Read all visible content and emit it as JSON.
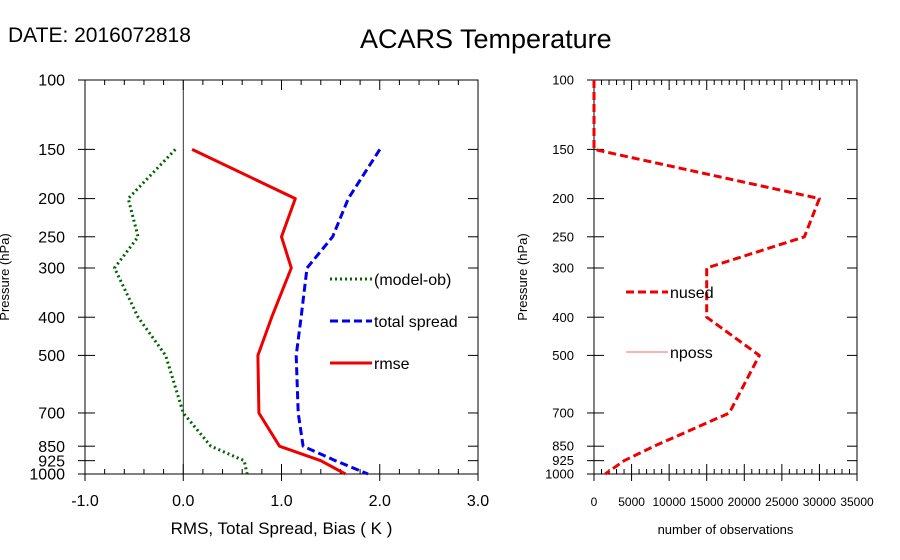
{
  "date_label": "DATE: 2016072818",
  "title": "ACARS Temperature",
  "chart_data": [
    {
      "type": "line",
      "name": "left-panel",
      "ylabel": "Pressure (hPa)",
      "xlabel": "RMS, Total Spread, Bias ( K )",
      "xlim": [
        -1.0,
        3.0
      ],
      "ylim": [
        1000,
        100
      ],
      "y_scale": "log",
      "xticks": [
        "-1.0",
        "0.0",
        "1.0",
        "2.0",
        "3.0"
      ],
      "yticks": [
        100,
        150,
        200,
        250,
        300,
        400,
        500,
        700,
        850,
        925,
        1000
      ],
      "zero_line": 0,
      "legend_position": "right-middle",
      "series": [
        {
          "name": "(model-ob)",
          "color": "#006400",
          "style": "dotted",
          "points": [
            [
              -0.08,
              150
            ],
            [
              -0.56,
              200
            ],
            [
              -0.46,
              250
            ],
            [
              -0.7,
              300
            ],
            [
              -0.46,
              400
            ],
            [
              -0.18,
              500
            ],
            [
              0.0,
              700
            ],
            [
              0.28,
              850
            ],
            [
              0.62,
              925
            ],
            [
              0.65,
              1000
            ]
          ]
        },
        {
          "name": "total spread",
          "color": "#0000ee",
          "style": "dashed",
          "points": [
            [
              2.0,
              150
            ],
            [
              1.68,
              200
            ],
            [
              1.52,
              250
            ],
            [
              1.26,
              300
            ],
            [
              1.2,
              400
            ],
            [
              1.15,
              500
            ],
            [
              1.17,
              700
            ],
            [
              1.22,
              850
            ],
            [
              1.55,
              925
            ],
            [
              1.88,
              1000
            ]
          ]
        },
        {
          "name": "rmse",
          "color": "#ee0000",
          "style": "solid",
          "points": [
            [
              0.09,
              150
            ],
            [
              1.14,
              200
            ],
            [
              1.0,
              250
            ],
            [
              1.1,
              300
            ],
            [
              0.9,
              400
            ],
            [
              0.76,
              500
            ],
            [
              0.77,
              700
            ],
            [
              0.98,
              850
            ],
            [
              1.4,
              925
            ],
            [
              1.65,
              1000
            ]
          ]
        }
      ]
    },
    {
      "type": "line",
      "name": "right-panel",
      "ylabel": "Pressure (hPa)",
      "xlabel": "number of observations",
      "xlim": [
        0,
        35000
      ],
      "ylim": [
        1000,
        100
      ],
      "y_scale": "log",
      "xticks": [
        "0",
        "5000",
        "10000",
        "15000",
        "20000",
        "25000",
        "30000",
        "35000"
      ],
      "yticks": [
        100,
        150,
        200,
        250,
        300,
        400,
        500,
        700,
        850,
        925,
        1000
      ],
      "legend_position": "left-middle",
      "series": [
        {
          "name": "nused",
          "color": "#ee0000",
          "style": "dashed",
          "points": [
            [
              0,
              100
            ],
            [
              0,
              150
            ],
            [
              30000,
              200
            ],
            [
              28000,
              250
            ],
            [
              15000,
              300
            ],
            [
              15000,
              400
            ],
            [
              22000,
              500
            ],
            [
              18000,
              700
            ],
            [
              8000,
              850
            ],
            [
              4000,
              925
            ],
            [
              1500,
              1000
            ]
          ]
        },
        {
          "name": "nposs",
          "color": "#ff6060",
          "style": "thin",
          "points": []
        }
      ]
    }
  ]
}
